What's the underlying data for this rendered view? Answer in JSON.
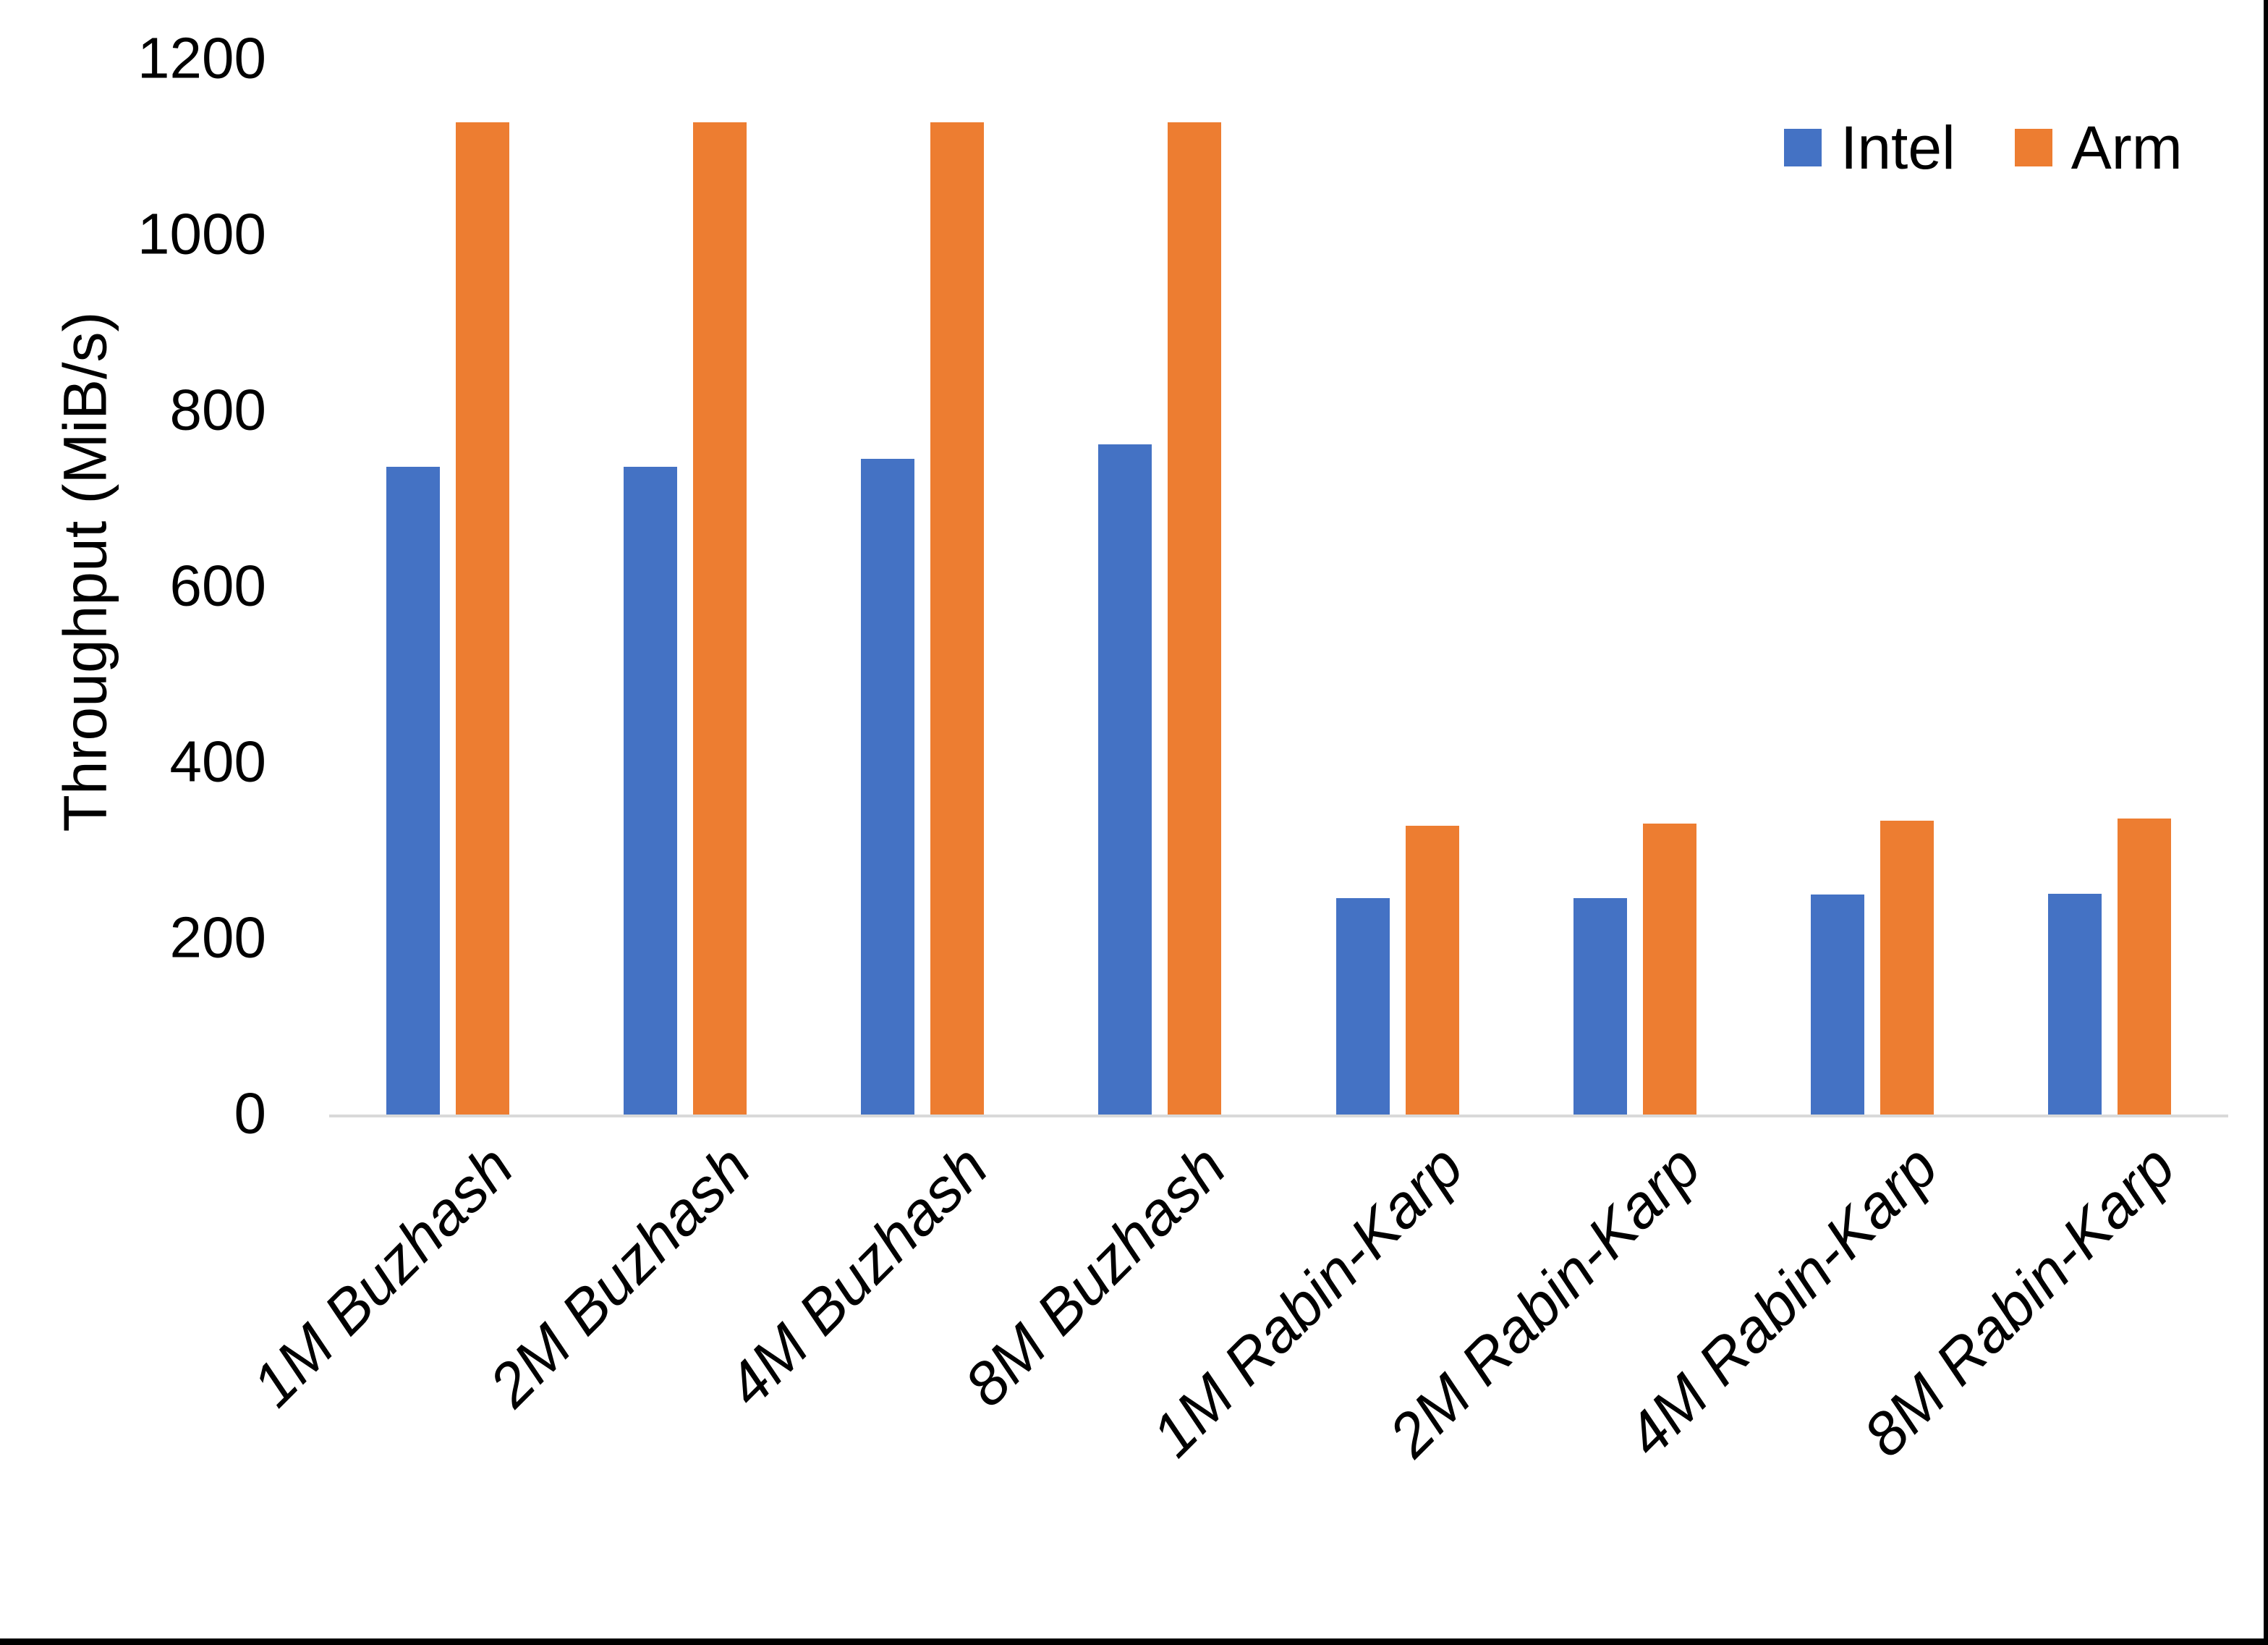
{
  "page": {
    "background": "#ffffff",
    "frame_border_color": "#000000"
  },
  "legend": {
    "items": [
      {
        "label": "Intel",
        "color": "#4472C4"
      },
      {
        "label": "Arm",
        "color": "#ED7D31"
      }
    ]
  },
  "chart_data": {
    "type": "bar",
    "title": "",
    "xlabel": "",
    "ylabel": "Throughput (MiB/s)",
    "ylim": [
      0,
      1200
    ],
    "yticks": [
      0,
      200,
      400,
      600,
      800,
      1000,
      1200
    ],
    "grid": false,
    "legend_position": "top-right",
    "axis_line_color": "#D9D9D9",
    "text_color": "#000000",
    "categories": [
      "1M Buzhash",
      "2M Buzhash",
      "4M Buzhash",
      "8M Buzhash",
      "1M Rabin-Karp",
      "2M Rabin-Karp",
      "4M Rabin-Karp",
      "8M Rabin-Karp"
    ],
    "series": [
      {
        "name": "Intel",
        "color": "#4472C4",
        "values": [
          737,
          737,
          746,
          762,
          246,
          246,
          250,
          251
        ]
      },
      {
        "name": "Arm",
        "color": "#ED7D31",
        "values": [
          1128,
          1128,
          1128,
          1128,
          328,
          331,
          334,
          337
        ]
      }
    ]
  }
}
